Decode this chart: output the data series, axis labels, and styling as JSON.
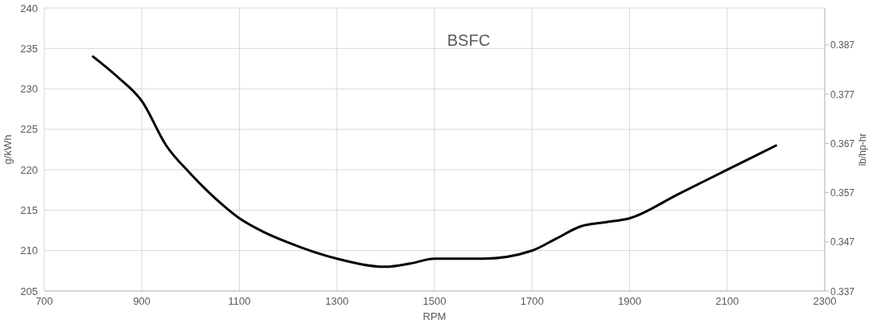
{
  "chart_data": {
    "type": "line",
    "title": "BSFC",
    "xlabel": "RPM",
    "ylabel": "g/kWh",
    "y2label": "lb/hp-hr",
    "x": [
      800,
      850,
      900,
      950,
      1000,
      1050,
      1100,
      1150,
      1200,
      1300,
      1400,
      1450,
      1500,
      1600,
      1700,
      1750,
      1800,
      1850,
      1900,
      2000,
      2100,
      2200
    ],
    "series": [
      {
        "color": "#000000",
        "values": [
          234,
          231.5,
          228.5,
          223,
          219.5,
          216.5,
          214,
          212.3,
          211,
          209,
          208,
          208.4,
          209,
          209,
          210,
          211.5,
          213,
          213.5,
          214,
          217,
          220,
          223
        ]
      }
    ],
    "xlim": [
      700,
      2300
    ],
    "xticks": [
      700,
      900,
      1100,
      1300,
      1500,
      1700,
      1900,
      2100,
      2300
    ],
    "ylim": [
      205,
      240
    ],
    "yticks": [
      205,
      210,
      215,
      220,
      225,
      230,
      235,
      240
    ],
    "y2lim": [
      0.337,
      0.3945
    ],
    "y2ticks": [
      0.337,
      0.347,
      0.357,
      0.367,
      0.377,
      0.387
    ],
    "grid": true,
    "line_style": "solid",
    "marker": "none"
  }
}
